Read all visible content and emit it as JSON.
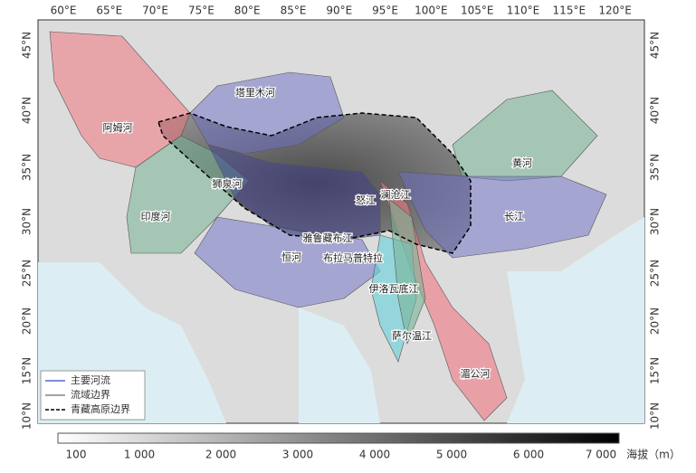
{
  "map": {
    "lon_labels": [
      "60°E",
      "65°E",
      "70°E",
      "75°E",
      "80°E",
      "85°E",
      "90°E",
      "95°E",
      "100°E",
      "105°E",
      "110°E",
      "115°E",
      "120°E"
    ],
    "lat_labels": [
      "45°N",
      "40°N",
      "35°N",
      "30°N",
      "25°N",
      "20°N",
      "15°N",
      "10°N"
    ],
    "rivers": [
      "塔里木河",
      "阿姆河",
      "黄河",
      "狮泉河",
      "怒江",
      "澜沧江",
      "印度河",
      "长江",
      "雅鲁藏布江",
      "恒河",
      "布拉马普特拉",
      "伊洛瓦底江",
      "萨尔温江",
      "湄公河"
    ],
    "legend": [
      "主要河流",
      "流域边界",
      "青藏高原边界"
    ],
    "colorbar": {
      "labels": [
        "100",
        "1 000",
        "2 000",
        "3 000",
        "4 000",
        "5 000",
        "6 000",
        "7 000"
      ],
      "title": "海拔（m）"
    }
  }
}
